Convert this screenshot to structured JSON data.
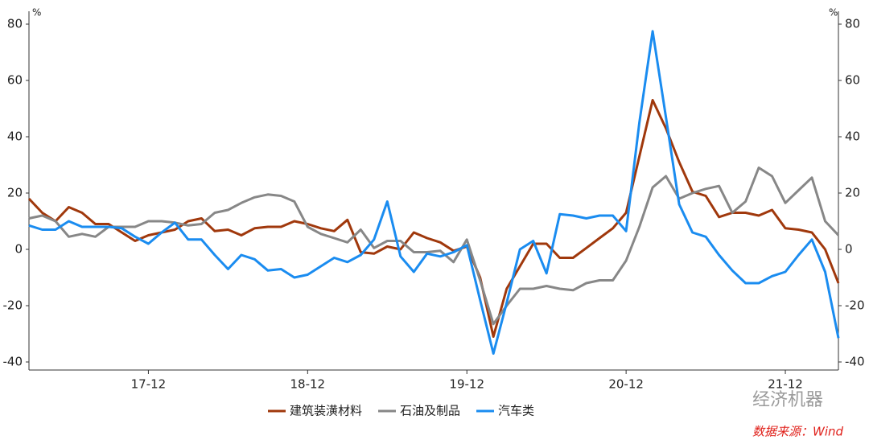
{
  "chart_data": {
    "type": "line",
    "y_label": "%",
    "y2_label": "%",
    "categories": [
      null,
      null,
      null,
      null,
      null,
      null,
      null,
      null,
      null,
      "17-12",
      null,
      null,
      null,
      null,
      null,
      null,
      null,
      null,
      null,
      null,
      null,
      "18-12",
      null,
      null,
      null,
      null,
      null,
      null,
      null,
      null,
      null,
      null,
      null,
      "19-12",
      null,
      null,
      null,
      null,
      null,
      null,
      null,
      null,
      null,
      null,
      null,
      "20-12",
      null,
      null,
      null,
      null,
      null,
      null,
      null,
      null,
      null,
      null,
      null,
      "21-12",
      null,
      null,
      null,
      null
    ],
    "series": [
      {
        "name": "建筑装潢材料",
        "color": "#a0380c",
        "values": [
          18,
          13,
          10,
          15,
          13,
          9,
          9,
          6,
          3,
          5,
          6,
          7,
          10,
          11,
          6.5,
          7,
          5,
          7.5,
          8,
          8,
          10,
          9,
          7.5,
          6.5,
          10.5,
          -1,
          -1.5,
          1,
          0,
          6,
          4,
          2.5,
          -0.5,
          1,
          -10,
          -31,
          -14,
          -6,
          2,
          2,
          -3,
          -3,
          0.5,
          4,
          7.5,
          13,
          33,
          53,
          43,
          31,
          20.5,
          19,
          11.5,
          13,
          13,
          12,
          14,
          7.5,
          7,
          6,
          0,
          -12
        ]
      },
      {
        "name": "石油及制品",
        "color": "#878787",
        "values": [
          11,
          12,
          10,
          4.5,
          5.5,
          4.5,
          8,
          8,
          8,
          10,
          10,
          9.5,
          8.5,
          9,
          13,
          14,
          16.5,
          18.5,
          19.5,
          19,
          17,
          8,
          5.5,
          4,
          2.5,
          7,
          0.5,
          3,
          3,
          -1,
          -1,
          -0.5,
          -4.5,
          3.5,
          -11,
          -26.5,
          -20,
          -14,
          -14,
          -13,
          -14,
          -14.5,
          -12,
          -11,
          -11,
          -4,
          8,
          22,
          26,
          18,
          20,
          21.5,
          22.5,
          13,
          17,
          29,
          26,
          16.5,
          21,
          25.5,
          10,
          5
        ]
      },
      {
        "name": "汽车类",
        "color": "#1a8cf0",
        "values": [
          8.5,
          7,
          7,
          10,
          8,
          8,
          8,
          7.5,
          4.5,
          2,
          6,
          9.5,
          3.5,
          3.5,
          -2,
          -7,
          -2,
          -3.5,
          -7.5,
          -7,
          -10,
          -9,
          -6,
          -3,
          -4.5,
          -2,
          3.5,
          17,
          -2.5,
          -8,
          -1.5,
          -2.5,
          -1,
          1.5,
          -18,
          -37,
          -19,
          0,
          3,
          -8.5,
          12.5,
          12,
          11,
          12,
          12,
          6.5,
          45,
          77.5,
          47,
          16,
          6,
          4.5,
          -2,
          -7.5,
          -12,
          -12,
          -9.5,
          -8,
          -2,
          3.5,
          -8,
          -31.5
        ]
      }
    ],
    "ylim": [
      -40,
      80
    ],
    "yticks": [
      -40,
      -20,
      0,
      20,
      40,
      60,
      80
    ],
    "y2lim": [
      -40,
      80
    ],
    "y2ticks": [
      -40,
      -20,
      0,
      20,
      40,
      60,
      80
    ],
    "grid": false,
    "legend": "bottom",
    "annotations": [
      "经济机器",
      "数据来源：Wind"
    ]
  }
}
